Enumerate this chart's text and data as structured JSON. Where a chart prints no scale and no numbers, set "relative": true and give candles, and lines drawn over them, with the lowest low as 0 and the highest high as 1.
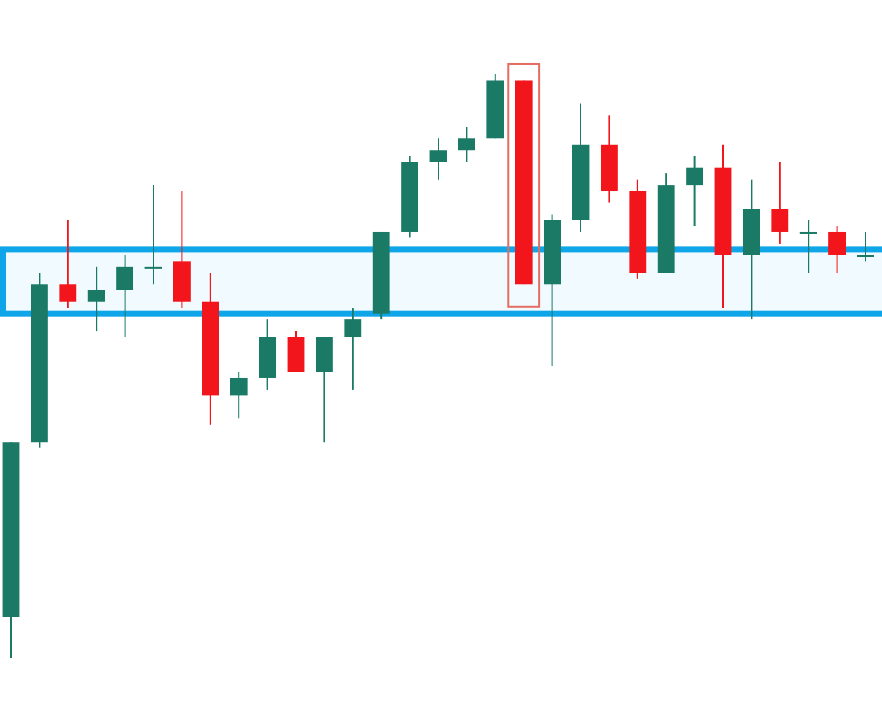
{
  "chart_data": {
    "type": "candlestick",
    "relative": true,
    "categories": [
      null,
      null,
      null,
      null,
      null,
      null,
      null,
      null,
      null,
      null,
      null,
      null,
      null,
      null,
      null,
      null,
      null,
      null,
      null,
      null,
      null,
      null,
      null,
      null,
      null,
      null,
      null,
      null,
      null,
      null,
      null
    ],
    "ohlc": [
      [
        0.07,
        0.37,
        0,
        0.37
      ],
      [
        0.37,
        0.66,
        0.36,
        0.64
      ],
      [
        0.64,
        0.75,
        0.6,
        0.61
      ],
      [
        0.61,
        0.67,
        0.56,
        0.63
      ],
      [
        0.63,
        0.69,
        0.55,
        0.67
      ],
      [
        0.67,
        0.81,
        0.64,
        0.67
      ],
      [
        0.68,
        0.8,
        0.6,
        0.61
      ],
      [
        0.61,
        0.66,
        0.4,
        0.45
      ],
      [
        0.45,
        0.49,
        0.41,
        0.48
      ],
      [
        0.48,
        0.58,
        0.46,
        0.55
      ],
      [
        0.55,
        0.56,
        0.49,
        0.49
      ],
      [
        0.49,
        0.55,
        0.37,
        0.55
      ],
      [
        0.55,
        0.6,
        0.46,
        0.58
      ],
      [
        0.59,
        0.73,
        0.58,
        0.73
      ],
      [
        0.73,
        0.86,
        0.72,
        0.85
      ],
      [
        0.85,
        0.89,
        0.82,
        0.87
      ],
      [
        0.87,
        0.91,
        0.85,
        0.89
      ],
      [
        0.89,
        1,
        0.89,
        0.99
      ],
      [
        0.99,
        0.99,
        0.64,
        0.64
      ],
      [
        0.64,
        0.76,
        0.5,
        0.75
      ],
      [
        0.75,
        0.95,
        0.73,
        0.88
      ],
      [
        0.88,
        0.93,
        0.78,
        0.8
      ],
      [
        0.8,
        0.82,
        0.65,
        0.66
      ],
      [
        0.66,
        0.83,
        0.66,
        0.81
      ],
      [
        0.81,
        0.86,
        0.74,
        0.84
      ],
      [
        0.84,
        0.88,
        0.6,
        0.69
      ],
      [
        0.69,
        0.82,
        0.58,
        0.77
      ],
      [
        0.77,
        0.85,
        0.71,
        0.73
      ],
      [
        0.73,
        0.75,
        0.66,
        0.73
      ],
      [
        0.73,
        0.74,
        0.66,
        0.69
      ],
      [
        0.69,
        0.73,
        0.68,
        0.69
      ]
    ],
    "colors": [
      "#1a7a66",
      "#1a7a66",
      "#f2151b",
      "#1a7a66",
      "#1a7a66",
      "#1a7a66",
      "#f2151b",
      "#f2151b",
      "#1a7a66",
      "#1a7a66",
      "#f2151b",
      "#1a7a66",
      "#1a7a66",
      "#1a7a66",
      "#1a7a66",
      "#1a7a66",
      "#1a7a66",
      "#1a7a66",
      "#f2151b",
      "#1a7a66",
      "#1a7a66",
      "#f2151b",
      "#f2151b",
      "#1a7a66",
      "#1a7a66",
      "#f2151b",
      "#1a7a66",
      "#f2151b",
      "#1a7a66",
      "#f2151b",
      "#1a7a66"
    ],
    "bands": [
      {
        "axis": "y",
        "from": 0.59,
        "to": 0.7,
        "color": "#0ea5e9"
      }
    ]
  }
}
